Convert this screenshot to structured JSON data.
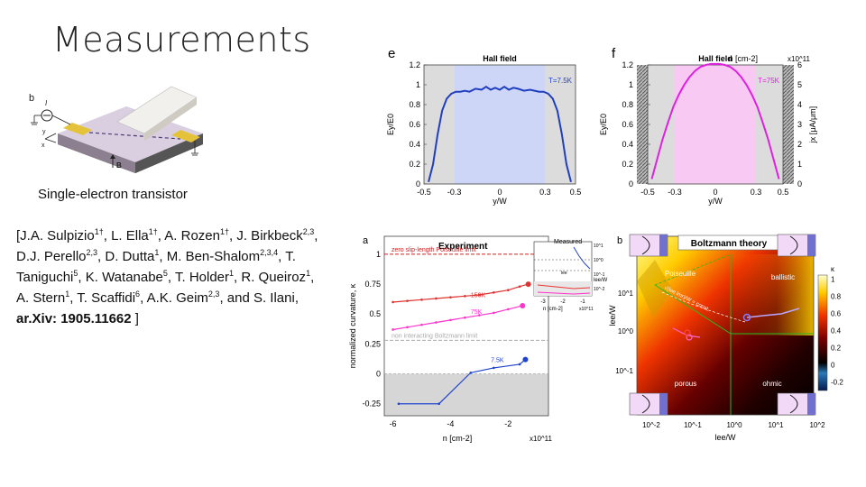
{
  "slide": {
    "title": "Measurements",
    "device_caption": "Single-electron transistor",
    "device_labels": {
      "panel": "b",
      "current": "I",
      "x_axis": "x",
      "y_axis": "y",
      "field": "B"
    },
    "reference": {
      "open": "[J.A. Sulpizio",
      "sup1": "1†",
      "a2": ", L. Ella",
      "sup2": "1†",
      "a3": ", A. Rozen",
      "sup3": "1†",
      "a4": ", J. Birkbeck",
      "sup4": "2,3",
      "a5": ", D.J. Perello",
      "sup5": "2,3",
      "a6": ", D. Dutta",
      "sup6": "1",
      "a7": ", M. Ben-Shalom",
      "sup7": "2,3,4",
      "a8": ", T. Taniguchi",
      "sup8": "5",
      "a9": ", K. Watanabe",
      "sup9": "5",
      "a10": ", T. Holder",
      "sup10": "1",
      "a11": ", R. Queiroz",
      "sup11": "1",
      "a12": ", A. Stern",
      "sup12": "1",
      "a13": ", T. Scaffidi",
      "sup13": "6",
      "a14": ", A.K. Geim",
      "sup14": "2,3",
      "a15": ", and S. Ilani, ",
      "arxiv": "ar.Xiv: 1905.11662",
      "close": " ]"
    }
  },
  "chart_data": [
    {
      "panel": "e",
      "type": "line",
      "title": "Hall field",
      "annotation": "T=7.5K",
      "xlabel": "y/W",
      "ylabel": "Ey/E0",
      "xlim": [
        -0.5,
        0.5
      ],
      "ylim": [
        0,
        1.2
      ],
      "xticks": [
        "-0.5",
        "-0.3",
        "0",
        "0.3",
        "0.5"
      ],
      "yticks": [
        "0",
        "0.2",
        "0.4",
        "0.6",
        "0.8",
        "1",
        "1.2"
      ],
      "series": [
        {
          "name": "T=7.5K",
          "color": "#1f3fbf",
          "x": [
            -0.47,
            -0.44,
            -0.41,
            -0.38,
            -0.35,
            -0.32,
            -0.29,
            -0.26,
            -0.23,
            -0.2,
            -0.16,
            -0.12,
            -0.09,
            -0.06,
            -0.03,
            0,
            0.03,
            0.06,
            0.09,
            0.12,
            0.16,
            0.2,
            0.23,
            0.26,
            0.29,
            0.32,
            0.35,
            0.38,
            0.41,
            0.44,
            0.47
          ],
          "y": [
            0.02,
            0.2,
            0.5,
            0.74,
            0.86,
            0.91,
            0.93,
            0.93,
            0.94,
            0.93,
            0.96,
            0.95,
            0.98,
            0.95,
            0.97,
            0.95,
            0.98,
            0.95,
            0.97,
            0.96,
            0.94,
            0.95,
            0.94,
            0.93,
            0.93,
            0.91,
            0.86,
            0.74,
            0.5,
            0.2,
            0.02
          ]
        }
      ]
    },
    {
      "panel": "f",
      "type": "line",
      "title": "Hall field",
      "annotation": "T=75K",
      "top_axis_label": "n [cm-2]",
      "top_axis_exponent": "x10^11",
      "xlabel": "y/W",
      "ylabel": "Ey/E0",
      "ylabel_right": "jx [μA/μm]",
      "xlim": [
        -0.5,
        0.5
      ],
      "ylim": [
        0,
        1.2
      ],
      "xticks": [
        "-0.5",
        "-0.3",
        "0",
        "0.3",
        "0.5"
      ],
      "yticks": [
        "0",
        "0.2",
        "0.4",
        "0.6",
        "0.8",
        "1",
        "1.2"
      ],
      "yticks_right": [
        "0",
        "1",
        "2",
        "3",
        "4",
        "5",
        "6"
      ],
      "series": [
        {
          "name": "T=75K",
          "color": "#e020e0",
          "x": [
            -0.47,
            -0.43,
            -0.39,
            -0.35,
            -0.31,
            -0.27,
            -0.23,
            -0.19,
            -0.15,
            -0.11,
            -0.07,
            -0.03,
            0,
            0.03,
            0.07,
            0.11,
            0.15,
            0.19,
            0.23,
            0.27,
            0.31,
            0.35,
            0.39,
            0.43,
            0.47
          ],
          "y": [
            0.05,
            0.25,
            0.45,
            0.62,
            0.78,
            0.9,
            1.0,
            1.08,
            1.14,
            1.18,
            1.2,
            1.21,
            1.21,
            1.21,
            1.2,
            1.18,
            1.14,
            1.08,
            1.0,
            0.9,
            0.78,
            0.62,
            0.45,
            0.25,
            0.05
          ]
        }
      ]
    },
    {
      "panel": "a",
      "type": "line",
      "title": "Experiment",
      "xlabel": "n [cm-2]",
      "x_exponent": "x10^11",
      "ylabel": "normalized curvature, κ",
      "xlim": [
        -6.3,
        -0.6
      ],
      "ylim": [
        -0.35,
        1.15
      ],
      "xticks": [
        "-6",
        "-4",
        "-2"
      ],
      "yticks": [
        "-0.25",
        "0",
        "0.25",
        "0.5",
        "0.75",
        "1"
      ],
      "reference_lines": [
        {
          "label": "zero slip-length Poiseuille limit",
          "value": 1.0,
          "color": "#cc2222"
        },
        {
          "label": "non interacting Boltzmann limit",
          "value": 0.28,
          "color": "#aaaaaa"
        }
      ],
      "series": [
        {
          "name": "150K",
          "color": "#dd3333",
          "x": [
            -6.0,
            -5.5,
            -5.0,
            -4.5,
            -4.0,
            -3.5,
            -3.0,
            -2.5,
            -2.0,
            -1.6,
            -1.3
          ],
          "y": [
            0.6,
            0.61,
            0.62,
            0.63,
            0.64,
            0.65,
            0.66,
            0.68,
            0.7,
            0.73,
            0.75
          ]
        },
        {
          "name": "75K",
          "color": "#ff33cc",
          "x": [
            -6.0,
            -5.5,
            -5.0,
            -4.5,
            -4.0,
            -3.5,
            -3.0,
            -2.5,
            -2.0,
            -1.5
          ],
          "y": [
            0.37,
            0.39,
            0.41,
            0.43,
            0.45,
            0.47,
            0.49,
            0.51,
            0.54,
            0.57
          ]
        },
        {
          "name": "7.5K",
          "color": "#2244cc",
          "x": [
            -5.8,
            -4.4,
            -3.3,
            -2.5,
            -1.6,
            -1.4
          ],
          "y": [
            -0.25,
            -0.25,
            0.01,
            0.05,
            0.08,
            0.12
          ]
        }
      ],
      "inset": {
        "title": "Measured",
        "axis_label": "lee/W",
        "xticks": [
          "-3",
          "-2",
          "-1"
        ],
        "xlabel": "n [cm-2]",
        "x_exponent": "x10^11",
        "y_ticks_right": [
          "10^1",
          "10^0",
          "10^-1",
          "10^-2"
        ],
        "label": "lee"
      }
    },
    {
      "panel": "b",
      "type": "heatmap",
      "title": "Boltzmann theory",
      "xlabel": "lee/W",
      "ylabel": "lee/W",
      "xticks": [
        "10^-2",
        "10^-1",
        "10^0",
        "10^1",
        "10^2"
      ],
      "yticks": [
        "10^-1",
        "10^0",
        "10^1"
      ],
      "region_labels": [
        "Poiseuille",
        "ballistic",
        "porous",
        "ohmic"
      ],
      "diagonal_label": "√(lee lmr)/W = const.",
      "colorbar": {
        "label": "κ",
        "ticks": [
          "-0.2",
          "0",
          "0.2",
          "0.4",
          "0.6",
          "0.8",
          "1"
        ],
        "range": [
          -0.3,
          1.05
        ]
      }
    }
  ]
}
